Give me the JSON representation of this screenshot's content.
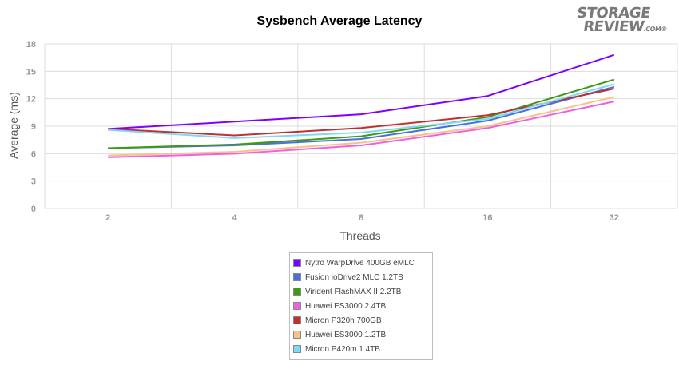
{
  "logo": {
    "line1": "STORAGE",
    "line2": "REVIEW",
    "suffix": ".COM®"
  },
  "chart_data": {
    "type": "line",
    "title": "Sysbench Average Latency",
    "xlabel": "Threads",
    "ylabel": "Average (ms)",
    "categories": [
      "2",
      "4",
      "8",
      "16",
      "32"
    ],
    "ylim": [
      0,
      18
    ],
    "yticks": [
      0,
      3,
      6,
      9,
      12,
      15,
      18
    ],
    "grid": true,
    "legend_position": "bottom",
    "series": [
      {
        "name": "Nytro WarpDrive 400GB eMLC",
        "color": "#8000ff",
        "values": [
          8.7,
          9.5,
          10.3,
          12.3,
          16.8
        ]
      },
      {
        "name": "Fusion ioDrive2 MLC 1.2TB",
        "color": "#4a6fe0",
        "values": [
          6.6,
          6.9,
          7.6,
          9.6,
          13.3
        ]
      },
      {
        "name": "Virident FlashMAX II 2.2TB",
        "color": "#3f9a10",
        "values": [
          6.6,
          7.0,
          7.9,
          10.0,
          14.1
        ]
      },
      {
        "name": "Huawei ES3000 2.4TB",
        "color": "#f060e0",
        "values": [
          5.6,
          6.0,
          6.9,
          8.8,
          11.7
        ]
      },
      {
        "name": "Micron P320h 700GB",
        "color": "#c03030",
        "values": [
          8.7,
          8.0,
          8.8,
          10.2,
          13.1
        ]
      },
      {
        "name": "Huawei ES3000 1.2TB",
        "color": "#f5c38a",
        "values": [
          5.8,
          6.2,
          7.2,
          9.0,
          12.2
        ]
      },
      {
        "name": "Micron P420m 1.4TB",
        "color": "#80d8f5",
        "values": [
          8.6,
          7.7,
          8.3,
          9.8,
          13.6
        ]
      }
    ]
  }
}
